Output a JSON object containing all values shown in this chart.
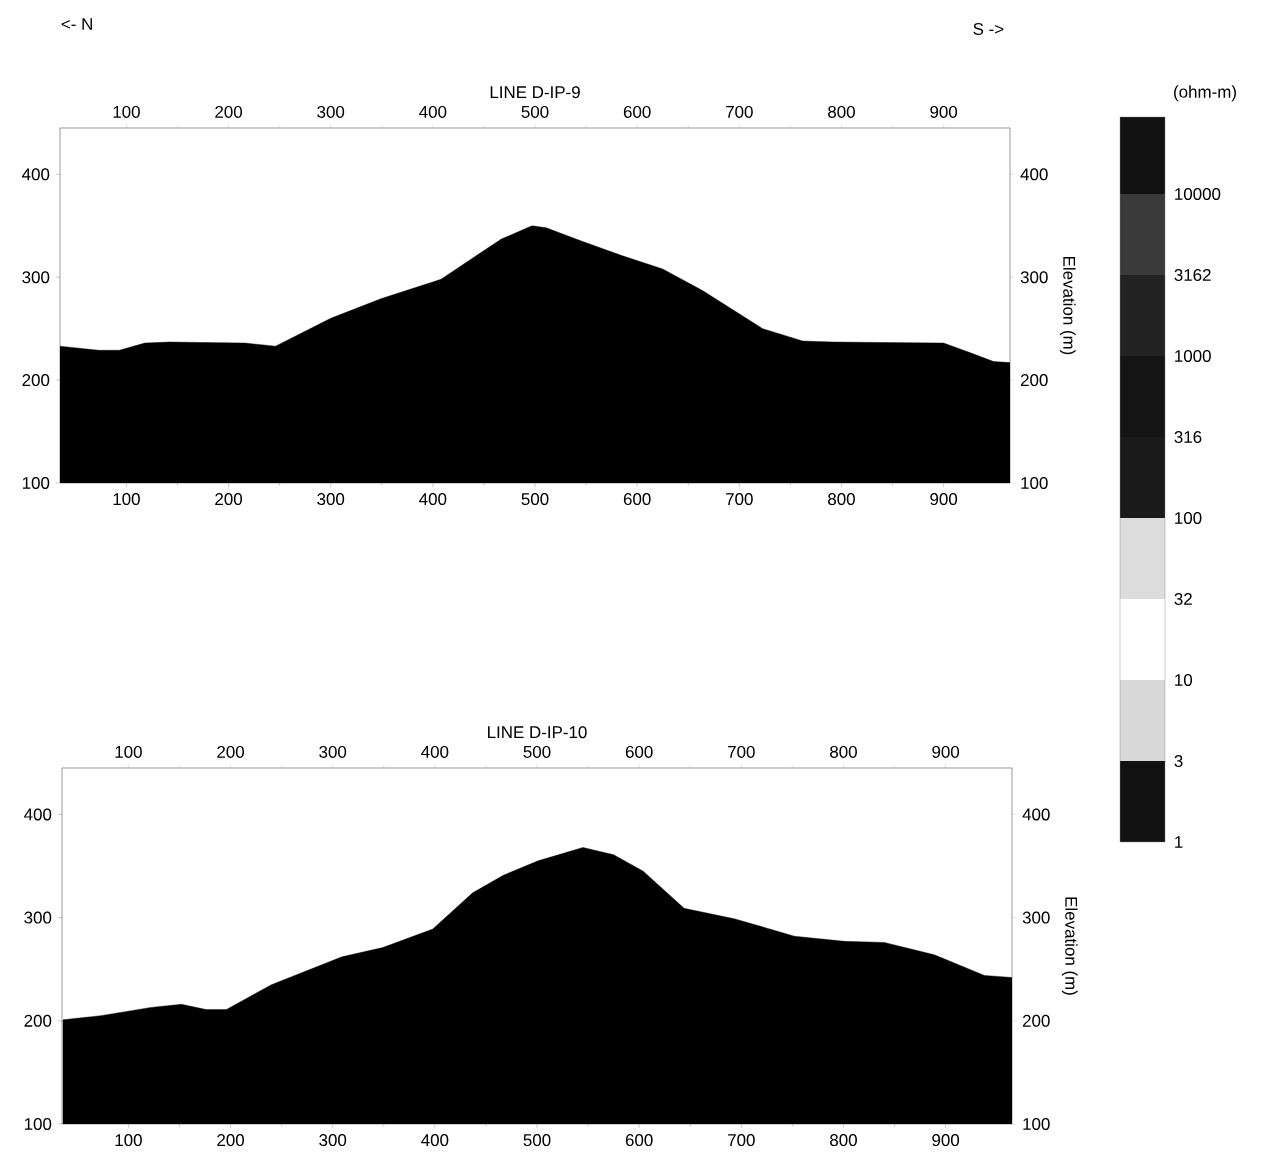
{
  "chart_data": [
    {
      "type": "area",
      "title": "LINE D-IP-9",
      "y2label": "Elevation (m)",
      "annotations": [
        "<- N",
        "S ->"
      ],
      "x": [
        35,
        73,
        93,
        118,
        142,
        216,
        246,
        300,
        349,
        408,
        438,
        467,
        497,
        511,
        546,
        585,
        625,
        664,
        723,
        762,
        792,
        900,
        925,
        949,
        965
      ],
      "series": [
        {
          "color": "#000000",
          "values": [
            233,
            229,
            229,
            236,
            237,
            236,
            233,
            260,
            279,
            298,
            318,
            337,
            350,
            348,
            335,
            321,
            308,
            287,
            250,
            238,
            237,
            236,
            227,
            218,
            217
          ]
        }
      ],
      "xlim": [
        35,
        965
      ],
      "xticks": [
        100,
        200,
        300,
        400,
        500,
        600,
        700,
        800,
        900
      ],
      "x2lim": [
        35,
        965
      ],
      "x2ticks": [
        100,
        200,
        300,
        400,
        500,
        600,
        700,
        800,
        900
      ],
      "ylim": [
        100,
        445
      ],
      "yticks": [
        100,
        200,
        300,
        400
      ],
      "y2lim": [
        100,
        445
      ],
      "y2ticks": [
        100,
        200,
        300,
        400
      ]
    },
    {
      "type": "area",
      "title": "LINE D-IP-10",
      "y2label": "Elevation (m)",
      "x": [
        36,
        73,
        122,
        152,
        176,
        196,
        240,
        309,
        349,
        398,
        437,
        467,
        501,
        545,
        575,
        604,
        644,
        693,
        752,
        801,
        840,
        889,
        938,
        965
      ],
      "series": [
        {
          "color": "#000000",
          "values": [
            201,
            205,
            213,
            216,
            211,
            211,
            235,
            262,
            271,
            289,
            324,
            341,
            355,
            368,
            361,
            345,
            309,
            299,
            282,
            277,
            276,
            264,
            244,
            242
          ]
        }
      ],
      "xlim": [
        35,
        965
      ],
      "xticks": [
        100,
        200,
        300,
        400,
        500,
        600,
        700,
        800,
        900
      ],
      "x2lim": [
        35,
        965
      ],
      "x2ticks": [
        100,
        200,
        300,
        400,
        500,
        600,
        700,
        800,
        900
      ],
      "ylim": [
        100,
        445
      ],
      "yticks": [
        100,
        200,
        300,
        400
      ],
      "y2lim": [
        100,
        445
      ],
      "y2ticks": [
        100,
        200,
        300,
        400
      ]
    },
    {
      "type": "other",
      "title": "(ohm-m)",
      "categories": [
        "1",
        "3",
        "10",
        "32",
        "100",
        "316",
        "1000",
        "3162",
        "10000"
      ]
    }
  ]
}
